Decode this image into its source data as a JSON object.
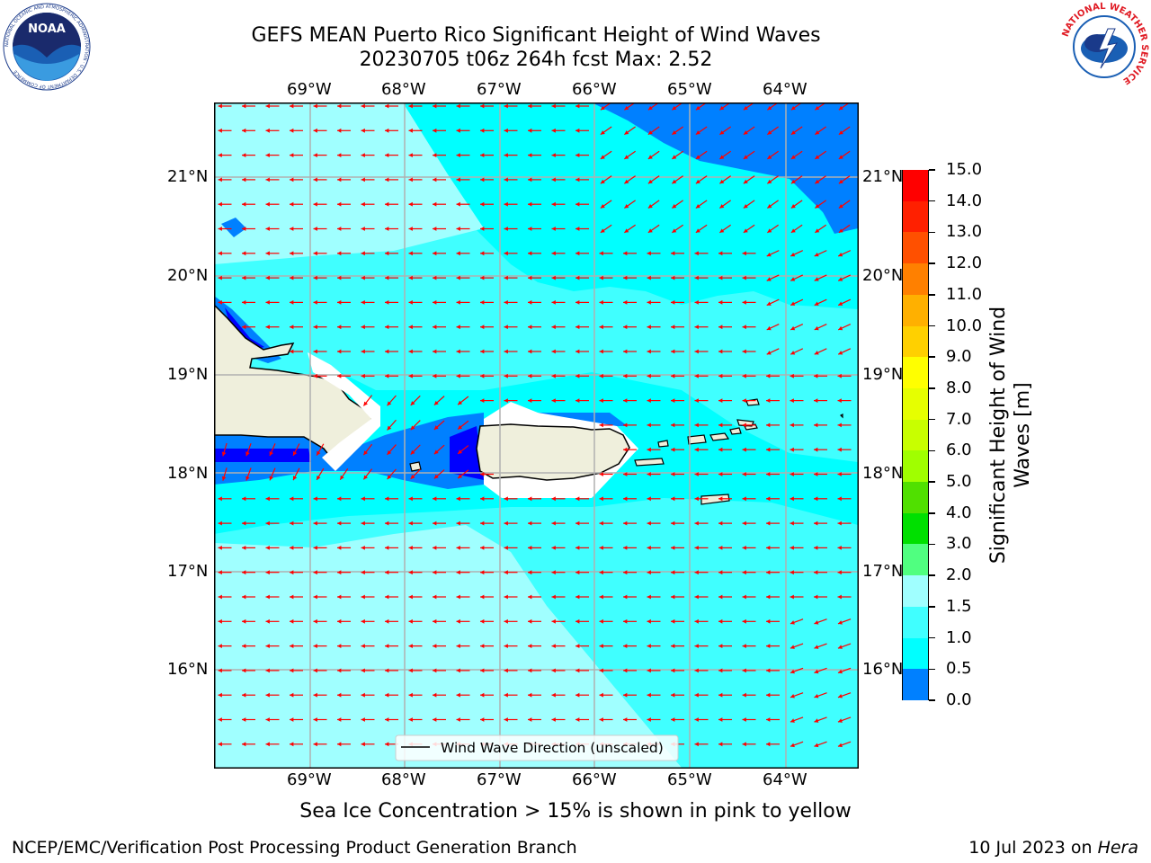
{
  "title_line1": "GEFS MEAN Puerto Rico Significant Height of Wind Waves",
  "title_line2": "20230705 t06z 264h fcst   Max: 2.52",
  "map": {
    "lon_labels": [
      "69°W",
      "68°W",
      "67°W",
      "66°W",
      "65°W",
      "64°W"
    ],
    "lat_labels": [
      "21°N",
      "20°N",
      "19°N",
      "18°N",
      "17°N",
      "16°N"
    ],
    "legend_label": "Wind Wave Direction (unscaled)",
    "arrow_color": "#ff0000",
    "fill_colors": {
      "0.0-0.5": "#0000ff",
      "0.5-1.0": "#0080ff",
      "1.0-1.5": "#00ffff",
      "1.5-2.0": "#40ffff",
      "2.0-3.0": "#a0ffff"
    },
    "land_color": "#efefdc"
  },
  "colorbar": {
    "label_line1": "Significant Height of Wind",
    "label_line2": "Waves [m]",
    "ticks": [
      "15.0",
      "14.0",
      "13.0",
      "12.0",
      "11.0",
      "10.0",
      "9.0",
      "8.0",
      "7.0",
      "6.0",
      "5.0",
      "4.0",
      "3.0",
      "2.0",
      "1.5",
      "1.0",
      "0.5",
      "0.0"
    ],
    "colors": [
      "#ff0000",
      "#ff2000",
      "#ff5000",
      "#ff8000",
      "#ffb000",
      "#ffd000",
      "#ffff00",
      "#e6ff00",
      "#c8ff00",
      "#a0ff00",
      "#50e000",
      "#00e000",
      "#50ff80",
      "#a0ffff",
      "#40ffff",
      "#00ffff",
      "#0080ff",
      "#0000ff"
    ]
  },
  "sea_ice_note": "Sea Ice Concentration > 15% is shown in pink to yellow",
  "footer_left": "NCEP/EMC/Verification Post Processing Product Generation Branch",
  "footer_date": "10 Jul 2023 on ",
  "footer_host": "Hera",
  "logos": {
    "noaa_text": "NOAA",
    "noaa_ring": "NATIONAL OCEANIC AND ATMOSPHERIC ADMINISTRATION · U.S. DEPARTMENT OF COMMERCE",
    "nws_ring": "NATIONAL WEATHER SERVICE"
  }
}
